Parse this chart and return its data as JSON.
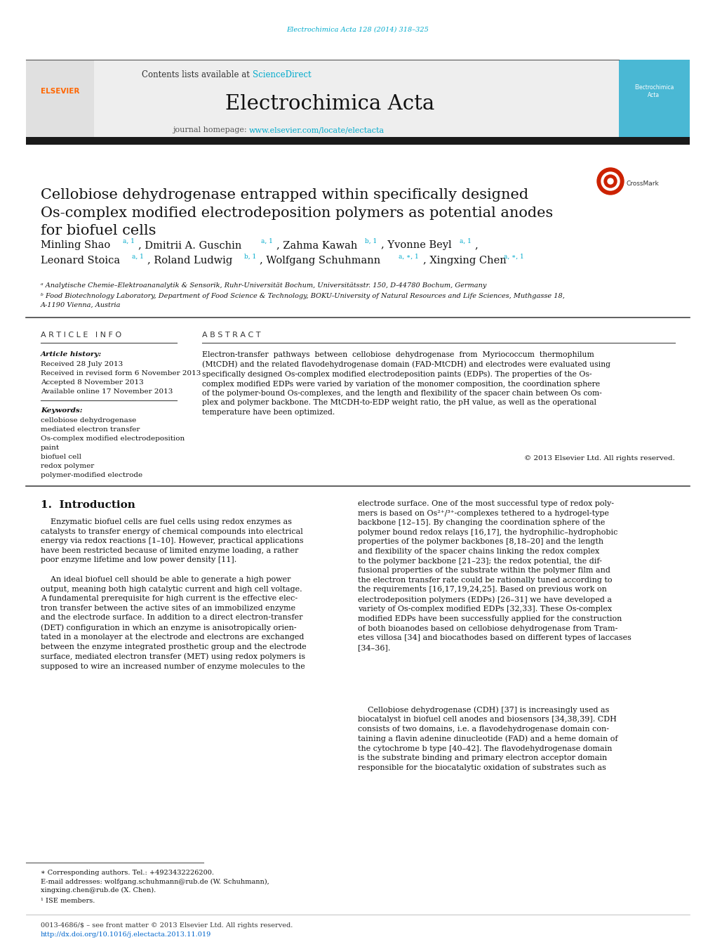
{
  "background_color": "#ffffff",
  "page_width": 10.2,
  "page_height": 13.51,
  "top_url_text": "Electrochimica Acta 128 (2014) 318–325",
  "top_url_color": "#00aacc",
  "header_bg_color": "#e8e8e8",
  "header_contents_text": "Contents lists available at ",
  "header_sciencedirect_text": "ScienceDirect",
  "header_sciencedirect_color": "#00aacc",
  "journal_name": "Electrochimica Acta",
  "journal_homepage_prefix": "journal homepage: ",
  "journal_homepage_url": "www.elsevier.com/locate/electacta",
  "journal_homepage_color": "#00aacc",
  "divider_color": "#333333",
  "dark_bar_color": "#2a2a2a",
  "article_title": "Cellobiose dehydrogenase entrapped within specifically designed\nOs-complex modified electrodeposition polymers as potential anodes\nfor biofuel cells",
  "article_title_fontsize": 15.5,
  "affil_a": "ᵃ Analytische Chemie–Elektroananalytik & Sensorik, Ruhr-Universität Bochum, Universitätsstr. 150, D-44780 Bochum, Germany",
  "affil_b": "ᵇ Food Biotechnology Laboratory, Department of Food Science & Technology, BOKU-University of Natural Resources and Life Sciences, Muthgasse 18,\nA-1190 Vienna, Austria",
  "article_info_header": "A R T I C L E   I N F O",
  "abstract_header": "A B S T R A C T",
  "article_history_label": "Article history:",
  "received_text": "Received 28 July 2013",
  "revised_text": "Received in revised form 6 November 2013",
  "accepted_text": "Accepted 8 November 2013",
  "available_text": "Available online 17 November 2013",
  "keywords_label": "Keywords:",
  "keywords": [
    "cellobiose dehydrogenase",
    "mediated electron transfer",
    "Os-complex modified electrodeposition",
    "paint",
    "biofuel cell",
    "redox polymer",
    "polymer-modified electrode"
  ],
  "abstract_text": "Electron-transfer  pathways  between  cellobiose  dehydrogenase  from  Myriococcum  thermophilum\n(MtCDH) and the related flavodehydrogenase domain (FAD-MtCDH) and electrodes were evaluated using\nspecifically designed Os-complex modified electrodeposition paints (EDPs). The properties of the Os-\ncomplex modified EDPs were varied by variation of the monomer composition, the coordination sphere\nof the polymer-bound Os-complexes, and the length and flexibility of the spacer chain between Os com-\nplex and polymer backbone. The MtCDH-to-EDP weight ratio, the pH value, as well as the operational\ntemperature have been optimized.",
  "copyright_text": "© 2013 Elsevier Ltd. All rights reserved.",
  "intro_header": "1.  Introduction",
  "intro_para1": "    Enzymatic biofuel cells are fuel cells using redox enzymes as\ncatalysts to transfer energy of chemical compounds into electrical\nenergy via redox reactions [1–10]. However, practical applications\nhave been restricted because of limited enzyme loading, a rather\npoor enzyme lifetime and low power density [11].",
  "intro_para2": "    An ideal biofuel cell should be able to generate a high power\noutput, meaning both high catalytic current and high cell voltage.\nA fundamental prerequisite for high current is the effective elec-\ntron transfer between the active sites of an immobilized enzyme\nand the electrode surface. In addition to a direct electron-transfer\n(DET) configuration in which an enzyme is anisotropically orien-\ntated in a monolayer at the electrode and electrons are exchanged\nbetween the enzyme integrated prosthetic group and the electrode\nsurface, mediated electron transfer (MET) using redox polymers is\nsupposed to wire an increased number of enzyme molecules to the",
  "right_col_para1": "electrode surface. One of the most successful type of redox poly-\nmers is based on Os²⁺/³⁺-complexes tethered to a hydrogel-type\nbackbone [12–15]. By changing the coordination sphere of the\npolymer bound redox relays [16,17], the hydrophilic–hydrophobic\nproperties of the polymer backbones [8,18–20] and the length\nand flexibility of the spacer chains linking the redox complex\nto the polymer backbone [21–23]; the redox potential, the dif-\nfusional properties of the substrate within the polymer film and\nthe electron transfer rate could be rationally tuned according to\nthe requirements [16,17,19,24,25]. Based on previous work on\nelectrodeposition polymers (EDPs) [26–31] we have developed a\nvariety of Os-complex modified EDPs [32,33]. These Os-complex\nmodified EDPs have been successfully applied for the construction\nof both bioanodes based on cellobiose dehydrogenase from Tram-\netes villosa [34] and biocathodes based on different types of laccases\n[34–36].",
  "right_col_para2": "    Cellobiose dehydrogenase (CDH) [37] is increasingly used as\nbiocatalyst in biofuel cell anodes and biosensors [34,38,39]. CDH\nconsists of two domains, i.e. a flavodehydrogenase domain con-\ntaining a flavin adenine dinucleotide (FAD) and a heme domain of\nthe cytochrome b type [40–42]. The flavodehydrogenase domain\nis the substrate binding and primary electron acceptor domain\nresponsible for the biocatalytic oxidation of substrates such as",
  "footnote_star": "∗ Corresponding authors. Tel.: +4923432226200.",
  "footnote_email": "E-mail addresses: wolfgang.schuhmann@rub.de (W. Schuhmann),\nxingxing.chen@rub.de (X. Chen).",
  "footnote_1": "¹ ISE members.",
  "issn_text": "0013-4686/$ – see front matter © 2013 Elsevier Ltd. All rights reserved.",
  "doi_text": "http://dx.doi.org/10.1016/j.electacta.2013.11.019",
  "link_color": "#0066cc",
  "cyan_color": "#00aacc"
}
